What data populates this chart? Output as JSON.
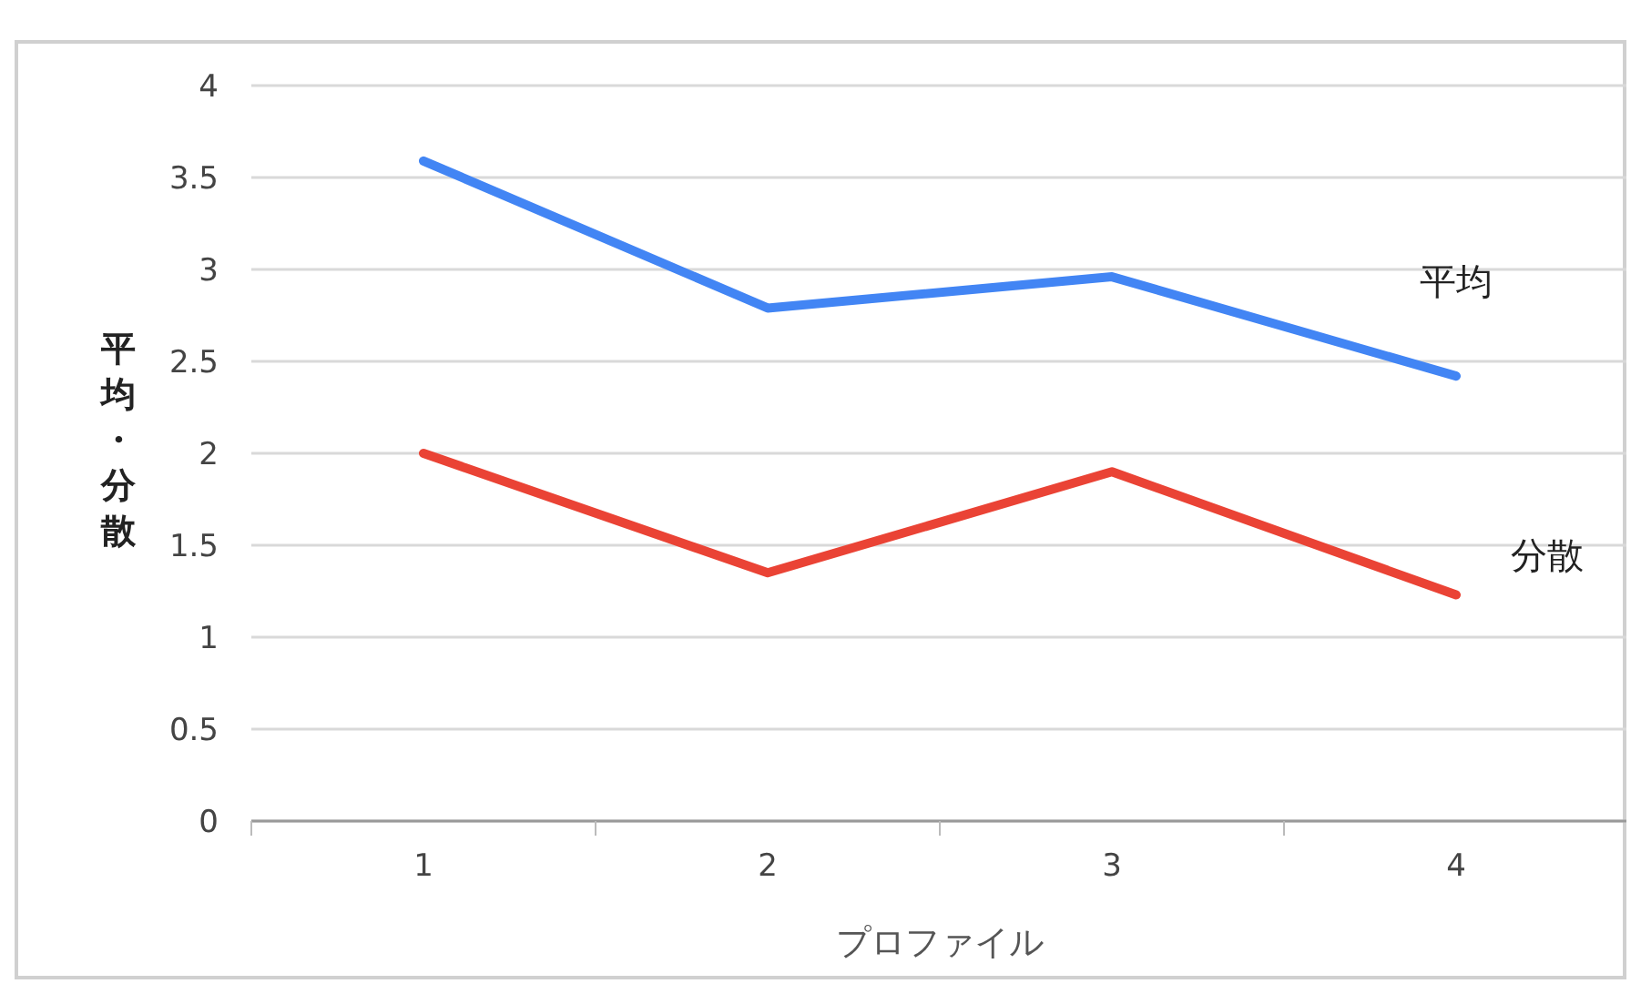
{
  "chart_data": {
    "type": "line",
    "xlabel": "プロファイル",
    "ylabel": "平均・分散",
    "categories": [
      "1",
      "2",
      "3",
      "4"
    ],
    "series": [
      {
        "name": "平均",
        "color": "#4285f4",
        "values": [
          3.59,
          2.79,
          2.96,
          2.42
        ]
      },
      {
        "name": "分散",
        "color": "#ea4335",
        "values": [
          2.0,
          1.35,
          1.9,
          1.23
        ]
      }
    ],
    "ylim": [
      0,
      4
    ],
    "yticks": [
      0,
      0.5,
      1,
      1.5,
      2,
      2.5,
      3,
      3.5,
      4
    ],
    "grid": "y",
    "marker": "none",
    "line_style": "solid"
  }
}
